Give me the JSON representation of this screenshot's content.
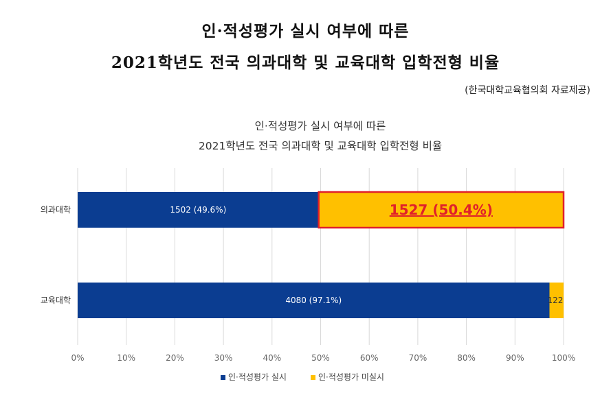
{
  "page": {
    "title_line1": "인·적성평가 실시 여부에 따른",
    "title_line2": "2021학년도 전국 의과대학 및 교육대학 입학전형 비율",
    "source": "(한국대학교육협의회 자료제공)"
  },
  "colors": {
    "series_conducted": "#0b3d91",
    "series_not_conducted": "#ffc000",
    "highlight_border": "#e0202a",
    "highlight_text": "#e0202a",
    "grid": "#d9d9d9"
  },
  "chart_data": {
    "type": "bar",
    "orientation": "horizontal",
    "stacking": "percent",
    "title_line1": "인·적성평가 실시 여부에 따른",
    "title_line2": "2021학년도 전국 의과대학 및 교육대학 입학전형 비율",
    "categories": [
      "의과대학",
      "교육대학"
    ],
    "series": [
      {
        "name": "인·적성평가 실시",
        "values": [
          49.6,
          97.1
        ],
        "counts": [
          1502,
          4080
        ],
        "labels": [
          "1502 (49.6%)",
          "4080 (97.1%)"
        ]
      },
      {
        "name": "인·적성평가 미실시",
        "values": [
          50.4,
          2.9
        ],
        "counts": [
          1527,
          122
        ],
        "labels": [
          "1527 (50.4%)",
          "122"
        ]
      }
    ],
    "xlim": [
      0,
      100
    ],
    "x_ticks": [
      "0%",
      "10%",
      "20%",
      "30%",
      "40%",
      "50%",
      "60%",
      "70%",
      "80%",
      "90%",
      "100%"
    ],
    "grid": true,
    "legend_position": "bottom",
    "annotations": [
      {
        "category": "의과대학",
        "series": "인·적성평가 미실시",
        "style": "red box, red underlined bold label"
      }
    ]
  }
}
